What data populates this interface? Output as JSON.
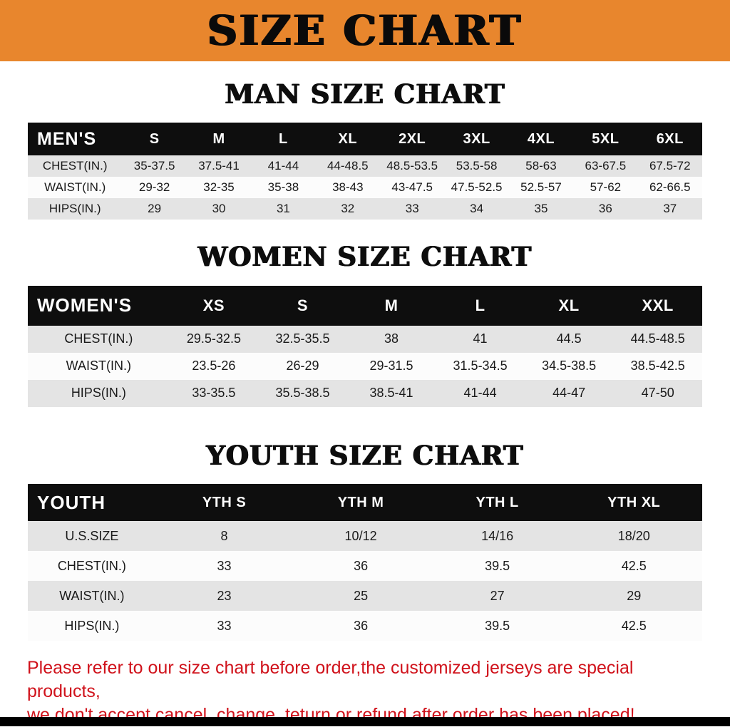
{
  "banner": {
    "title": "SIZE CHART"
  },
  "sections": [
    {
      "id": "men",
      "heading": "MAN SIZE CHART",
      "table": {
        "header": [
          "MEN'S",
          "S",
          "M",
          "L",
          "XL",
          "2XL",
          "3XL",
          "4XL",
          "5XL",
          "6XL"
        ],
        "rows": [
          [
            "CHEST(IN.)",
            "35-37.5",
            "37.5-41",
            "41-44",
            "44-48.5",
            "48.5-53.5",
            "53.5-58",
            "58-63",
            "63-67.5",
            "67.5-72"
          ],
          [
            "WAIST(IN.)",
            "29-32",
            "32-35",
            "35-38",
            "38-43",
            "43-47.5",
            "47.5-52.5",
            "52.5-57",
            "57-62",
            "62-66.5"
          ],
          [
            "HIPS(IN.)",
            "29",
            "30",
            "31",
            "32",
            "33",
            "34",
            "35",
            "36",
            "37"
          ]
        ]
      }
    },
    {
      "id": "women",
      "heading": "WOMEN SIZE CHART",
      "table": {
        "header": [
          "WOMEN'S",
          "XS",
          "S",
          "M",
          "L",
          "XL",
          "XXL"
        ],
        "rows": [
          [
            "CHEST(IN.)",
            "29.5-32.5",
            "32.5-35.5",
            "38",
            "41",
            "44.5",
            "44.5-48.5"
          ],
          [
            "WAIST(IN.)",
            "23.5-26",
            "26-29",
            "29-31.5",
            "31.5-34.5",
            "34.5-38.5",
            "38.5-42.5"
          ],
          [
            "HIPS(IN.)",
            "33-35.5",
            "35.5-38.5",
            "38.5-41",
            "41-44",
            "44-47",
            "47-50"
          ]
        ]
      }
    },
    {
      "id": "youth",
      "heading": "YOUTH SIZE CHART",
      "table": {
        "header": [
          "YOUTH",
          "YTH S",
          "YTH M",
          "YTH L",
          "YTH XL"
        ],
        "rows": [
          [
            "U.S.SIZE",
            "8",
            "10/12",
            "14/16",
            "18/20"
          ],
          [
            "CHEST(IN.)",
            "33",
            "36",
            "39.5",
            "42.5"
          ],
          [
            "WAIST(IN.)",
            "23",
            "25",
            "27",
            "29"
          ],
          [
            "HIPS(IN.)",
            "33",
            "36",
            "39.5",
            "42.5"
          ]
        ]
      }
    }
  ],
  "disclaimer": {
    "line1": "Please refer to our size chart before order,the customized jerseys are special products,",
    "line2": "we don't accept cancel, change, teturn or refund after order has been placed!"
  },
  "colors": {
    "banner_orange": "#E8862D",
    "header_black": "#0E0E0E",
    "row_gray": "#E4E4E4",
    "row_white": "#FCFCFC",
    "disclaimer_red": "#D0121B",
    "bottom_bar_black": "#000000"
  }
}
